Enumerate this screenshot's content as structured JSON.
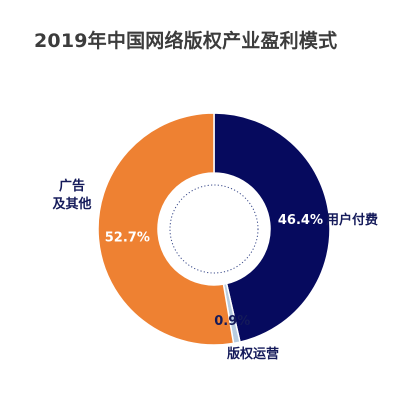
{
  "chart_data": {
    "type": "pie",
    "variant": "donut",
    "title": "2019年中国网络版权产业盈利模式",
    "slices": [
      {
        "label": "用户付费",
        "value": 46.4,
        "value_label": "46.4%",
        "color": "#060a5e",
        "text_color": "#ffffff"
      },
      {
        "label": "版权运营",
        "value": 0.9,
        "value_label": "0.9%",
        "color": "#b9cde0",
        "text_color": "#141a5a"
      },
      {
        "label": "广告及其他",
        "label_lines": [
          "广告",
          "及其他"
        ],
        "value": 52.7,
        "value_label": "52.7%",
        "color": "#ee8132",
        "text_color": "#ffffff"
      }
    ],
    "unit": "%",
    "start_angle_deg": 0,
    "direction": "clockwise",
    "legend": "none"
  }
}
